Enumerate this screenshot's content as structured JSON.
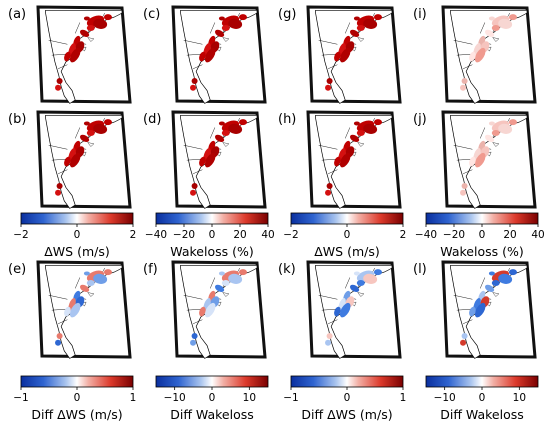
{
  "chart_data": {
    "type": "heatmap",
    "panels": [
      {
        "label": "(a)",
        "colorbar": "ws"
      },
      {
        "label": "(b)",
        "colorbar": "ws"
      },
      {
        "label": "(c)",
        "colorbar": "wl"
      },
      {
        "label": "(d)",
        "colorbar": "wl"
      },
      {
        "label": "(g)",
        "colorbar": "ws"
      },
      {
        "label": "(h)",
        "colorbar": "ws"
      },
      {
        "label": "(i)",
        "colorbar": "wl"
      },
      {
        "label": "(j)",
        "colorbar": "wl"
      },
      {
        "label": "(e)",
        "colorbar": "dws"
      },
      {
        "label": "(f)",
        "colorbar": "dwl"
      },
      {
        "label": "(k)",
        "colorbar": "dws"
      },
      {
        "label": "(l)",
        "colorbar": "dwl"
      }
    ],
    "colorbars": {
      "ws": {
        "label": "ΔWS (m/s)",
        "ticks": [
          "-2",
          "0",
          "2"
        ],
        "vmin": -2,
        "vmax": 2
      },
      "wl": {
        "label": "Wakeloss (%)",
        "ticks": [
          "-40",
          "-20",
          "0",
          "20",
          "40"
        ],
        "vmin": -40,
        "vmax": 40
      },
      "dws": {
        "label": "Diff ΔWS (m/s)",
        "ticks": [
          "-1",
          "0",
          "1"
        ],
        "vmin": -1,
        "vmax": 1
      },
      "dwl": {
        "label": "Diff Wakeloss",
        "ticks": [
          "-10",
          "0",
          "10"
        ],
        "vmin": -15,
        "vmax": 15
      }
    },
    "colormap": [
      "#08306b",
      "#2166ac",
      "#6aa6d6",
      "#ffffff",
      "#f4a08a",
      "#d42f2f",
      "#67000d"
    ]
  }
}
